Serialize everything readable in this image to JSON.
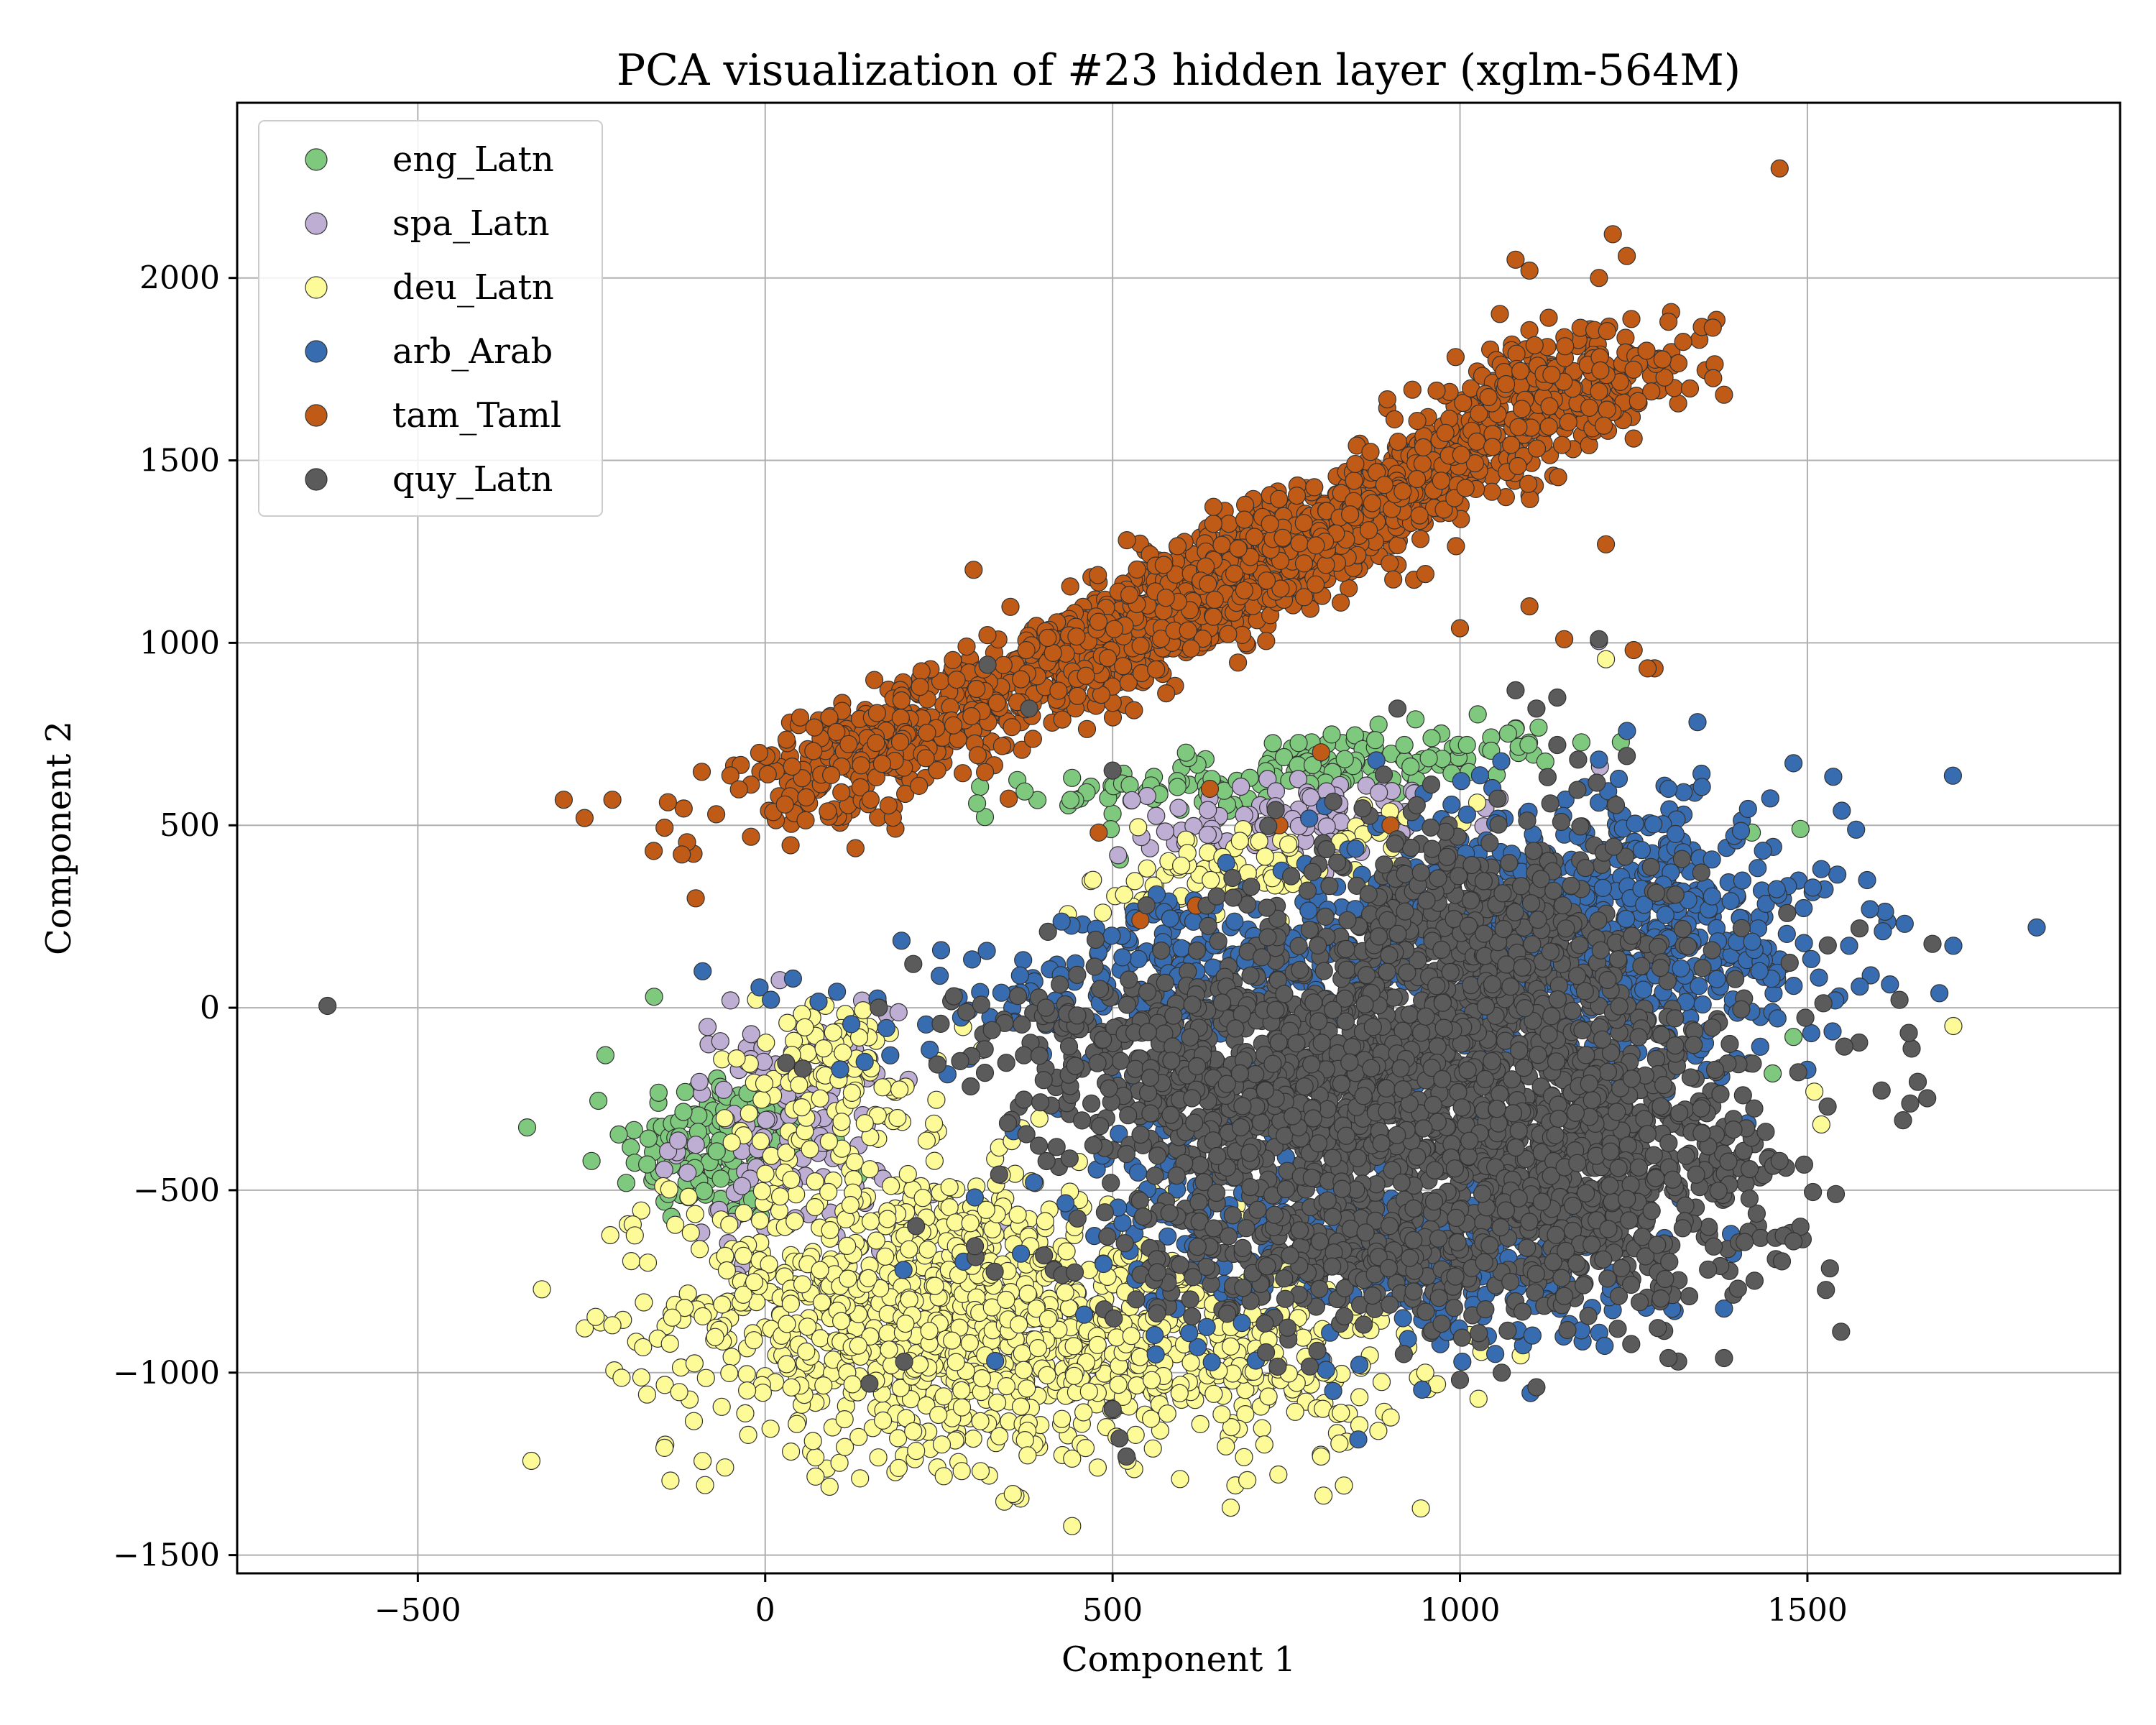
{
  "chart_data": {
    "type": "scatter",
    "title": "PCA visualization of #23 hidden layer (xglm-564M)",
    "xlabel": "Component 1",
    "ylabel": "Component 2",
    "xlim": [
      -760,
      1950
    ],
    "ylim": [
      -1550,
      2480
    ],
    "xticks": [
      -500,
      0,
      500,
      1000,
      1500
    ],
    "yticks": [
      -1500,
      -1000,
      -500,
      0,
      500,
      1000,
      1500,
      2000
    ],
    "xtick_labels": [
      "−500",
      "0",
      "500",
      "1000",
      "1500"
    ],
    "ytick_labels": [
      "−1500",
      "−1000",
      "−500",
      "0",
      "500",
      "1000",
      "1500",
      "2000"
    ],
    "grid": true,
    "legend_position": "top-left",
    "series": [
      {
        "name": "eng_Latn",
        "color": "#7fc97f",
        "clusters": [
          {
            "cx": -60,
            "cy": -380,
            "sx": 70,
            "sy": 110,
            "rot": 0,
            "n": 160
          },
          {
            "cx": 780,
            "cy": 650,
            "sx": 190,
            "sy": 45,
            "rot": 0.12,
            "n": 170
          }
        ],
        "points": [
          [
            1490,
            490
          ],
          [
            1420,
            480
          ],
          [
            1480,
            -80
          ],
          [
            1450,
            -180
          ],
          [
            -230,
            -130
          ],
          [
            -160,
            30
          ],
          [
            -200,
            -480
          ],
          [
            920,
            720
          ],
          [
            1010,
            720
          ],
          [
            -250,
            -420
          ]
        ]
      },
      {
        "name": "spa_Latn",
        "color": "#beaed4",
        "clusters": [
          {
            "cx": 30,
            "cy": -330,
            "sx": 75,
            "sy": 160,
            "rot": 0,
            "n": 130
          },
          {
            "cx": 790,
            "cy": 520,
            "sx": 140,
            "sy": 55,
            "rot": 0.1,
            "n": 90
          }
        ],
        "points": [
          [
            1200,
            1005
          ],
          [
            1390,
            -420
          ],
          [
            520,
            -1230
          ],
          [
            -50,
            20
          ],
          [
            340,
            -610
          ],
          [
            1180,
            -140
          ]
        ]
      },
      {
        "name": "deu_Latn",
        "color": "#fdfb98",
        "clusters": [
          {
            "cx": 210,
            "cy": -820,
            "sx": 170,
            "sy": 200,
            "rot": 0,
            "n": 900
          },
          {
            "cx": 570,
            "cy": -940,
            "sx": 180,
            "sy": 150,
            "rot": 0,
            "n": 450
          },
          {
            "cx": 700,
            "cy": 390,
            "sx": 120,
            "sy": 55,
            "rot": 0.2,
            "n": 90
          },
          {
            "cx": 90,
            "cy": -180,
            "sx": 80,
            "sy": 110,
            "rot": 0,
            "n": 120
          }
        ],
        "points": [
          [
            1710,
            -50
          ],
          [
            1210,
            955
          ],
          [
            1510,
            -230
          ],
          [
            1520,
            -320
          ],
          [
            670,
            -1370
          ],
          [
            -170,
            -1060
          ],
          [
            -220,
            -870
          ],
          [
            1260,
            20
          ],
          [
            950,
            -1000
          ],
          [
            310,
            -1270
          ],
          [
            1420,
            -360
          ],
          [
            800,
            -1230
          ]
        ]
      },
      {
        "name": "arb_Arab",
        "color": "#386cb0",
        "clusters": [
          {
            "cx": 1130,
            "cy": 200,
            "sx": 160,
            "sy": 200,
            "rot": 0,
            "n": 500
          },
          {
            "cx": 1300,
            "cy": 180,
            "sx": 130,
            "sy": 160,
            "rot": 0,
            "n": 250
          },
          {
            "cx": 640,
            "cy": 110,
            "sx": 210,
            "sy": 90,
            "rot": 0.2,
            "n": 300
          },
          {
            "cx": 700,
            "cy": -550,
            "sx": 150,
            "sy": 180,
            "rot": 0,
            "n": 200
          },
          {
            "cx": 1000,
            "cy": -700,
            "sx": 150,
            "sy": 110,
            "rot": 0,
            "n": 220
          }
        ],
        "points": [
          [
            1830,
            220
          ],
          [
            1710,
            170
          ],
          [
            1690,
            40
          ],
          [
            1640,
            230
          ],
          [
            1590,
            270
          ],
          [
            1560,
            170
          ],
          [
            1540,
            20
          ],
          [
            1520,
            380
          ],
          [
            1480,
            670
          ],
          [
            -90,
            100
          ],
          [
            40,
            80
          ],
          [
            1500,
            -170
          ],
          [
            1390,
            -620
          ],
          [
            1200,
            680
          ],
          [
            1300,
            600
          ]
        ]
      },
      {
        "name": "tam_Taml",
        "color": "#bf5b17",
        "clusters": [
          {
            "cx": 650,
            "cy": 1150,
            "sx": 190,
            "sy": 55,
            "rot": 0.55,
            "n": 800
          },
          {
            "cx": 470,
            "cy": 980,
            "sx": 230,
            "sy": 60,
            "rot": 0.5,
            "n": 450
          },
          {
            "cx": 920,
            "cy": 1440,
            "sx": 180,
            "sy": 55,
            "rot": 0.5,
            "n": 450
          },
          {
            "cx": 1120,
            "cy": 1700,
            "sx": 100,
            "sy": 70,
            "rot": 0.4,
            "n": 200
          },
          {
            "cx": 140,
            "cy": 700,
            "sx": 110,
            "sy": 70,
            "rot": 0.5,
            "n": 200
          }
        ],
        "points": [
          [
            1460,
            2300
          ],
          [
            1220,
            2120
          ],
          [
            1240,
            2060
          ],
          [
            1200,
            2000
          ],
          [
            1100,
            2020
          ],
          [
            1080,
            2050
          ],
          [
            1380,
            1680
          ],
          [
            1300,
            1880
          ],
          [
            1250,
            1560
          ],
          [
            1210,
            1270
          ],
          [
            1150,
            1010
          ],
          [
            1280,
            930
          ],
          [
            -290,
            570
          ],
          [
            -260,
            520
          ],
          [
            -220,
            570
          ],
          [
            -120,
            420
          ],
          [
            -100,
            300
          ],
          [
            1250,
            980
          ],
          [
            1270,
            930
          ],
          [
            620,
            280
          ],
          [
            640,
            600
          ],
          [
            740,
            500
          ],
          [
            900,
            500
          ],
          [
            800,
            700
          ],
          [
            1020,
            200
          ],
          [
            1000,
            1040
          ],
          [
            1100,
            1100
          ],
          [
            540,
            240
          ],
          [
            480,
            480
          ],
          [
            300,
            1200
          ]
        ]
      },
      {
        "name": "quy_Latn",
        "color": "#5b5b5b",
        "clusters": [
          {
            "cx": 980,
            "cy": -230,
            "sx": 210,
            "sy": 230,
            "rot": 0,
            "n": 1400
          },
          {
            "cx": 1020,
            "cy": 250,
            "sx": 130,
            "sy": 140,
            "rot": 0,
            "n": 350
          },
          {
            "cx": 640,
            "cy": -200,
            "sx": 180,
            "sy": 120,
            "rot": -0.25,
            "n": 400
          },
          {
            "cx": 1220,
            "cy": -500,
            "sx": 120,
            "sy": 160,
            "rot": 0,
            "n": 300
          },
          {
            "cx": 850,
            "cy": -700,
            "sx": 200,
            "sy": 100,
            "rot": 0,
            "n": 300
          }
        ],
        "points": [
          [
            -630,
            5
          ],
          [
            1490,
            -600
          ],
          [
            1480,
            -640
          ],
          [
            1400,
            -770
          ],
          [
            1380,
            -960
          ],
          [
            1300,
            -960
          ],
          [
            1680,
            175
          ],
          [
            1440,
            -340
          ],
          [
            1460,
            -420
          ],
          [
            1310,
            310
          ],
          [
            1200,
            1010
          ],
          [
            1140,
            850
          ],
          [
            1080,
            870
          ],
          [
            1110,
            820
          ],
          [
            1140,
            720
          ],
          [
            1130,
            560
          ],
          [
            1170,
            680
          ],
          [
            1240,
            690
          ],
          [
            910,
            820
          ],
          [
            500,
            650
          ],
          [
            380,
            820
          ],
          [
            320,
            940
          ],
          [
            520,
            -1230
          ],
          [
            510,
            -1180
          ],
          [
            500,
            -1100
          ],
          [
            150,
            -1030
          ],
          [
            200,
            -970
          ],
          [
            1150,
            -790
          ],
          [
            1060,
            -1000
          ],
          [
            1000,
            -1020
          ],
          [
            1110,
            -1040
          ]
        ]
      }
    ]
  }
}
